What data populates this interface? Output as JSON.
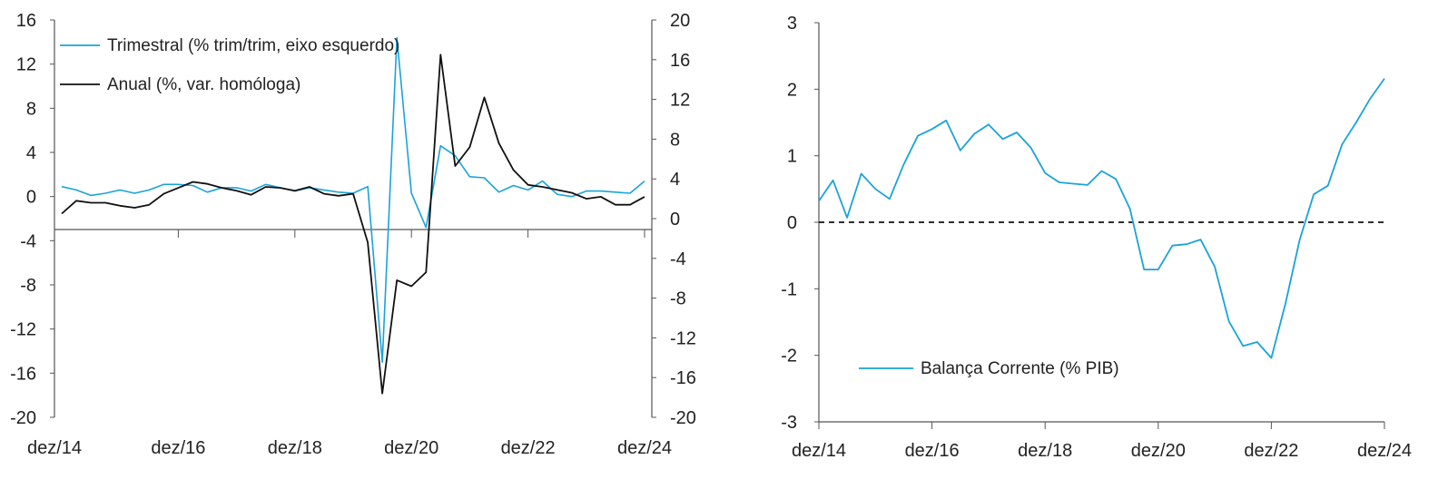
{
  "chart_data": [
    {
      "type": "line",
      "x": [
        "2014Q4",
        "2015Q1",
        "2015Q2",
        "2015Q3",
        "2015Q4",
        "2016Q1",
        "2016Q2",
        "2016Q3",
        "2016Q4",
        "2017Q1",
        "2017Q2",
        "2017Q3",
        "2017Q4",
        "2018Q1",
        "2018Q2",
        "2018Q3",
        "2018Q4",
        "2019Q1",
        "2019Q2",
        "2019Q3",
        "2019Q4",
        "2020Q1",
        "2020Q2",
        "2020Q3",
        "2020Q4",
        "2021Q1",
        "2021Q2",
        "2021Q3",
        "2021Q4",
        "2022Q1",
        "2022Q2",
        "2022Q3",
        "2022Q4",
        "2023Q1",
        "2023Q2",
        "2023Q3",
        "2023Q4",
        "2024Q1",
        "2024Q2",
        "2024Q3",
        "2024Q4"
      ],
      "x_tick_labels": [
        "dez/14",
        "dez/16",
        "dez/18",
        "dez/20",
        "dez/22",
        "dez/24"
      ],
      "y_left_ticks": [
        "16",
        "12",
        "8",
        "4",
        "0",
        "-4",
        "-8",
        "-12",
        "-16",
        "-20"
      ],
      "y_right_ticks": [
        "20",
        "16",
        "12",
        "8",
        "4",
        "0",
        "-4",
        "-8",
        "-12",
        "-16",
        "-20"
      ],
      "ylim_left": [
        -20,
        16
      ],
      "ylim_right": [
        -20,
        20
      ],
      "legend_position": "top-left",
      "grid": false,
      "series": [
        {
          "name": "Trimestral (% trim/trim, eixo esquerdo)",
          "axis": "left",
          "color": "#1aa3d9",
          "values": [
            0.9,
            0.6,
            0.1,
            0.3,
            0.6,
            0.3,
            0.6,
            1.1,
            1.1,
            1.0,
            0.4,
            0.8,
            0.8,
            0.5,
            1.1,
            0.8,
            0.5,
            0.8,
            0.6,
            0.4,
            0.3,
            0.9,
            -15.0,
            14.4,
            0.3,
            -2.8,
            4.6,
            3.7,
            1.8,
            1.7,
            0.4,
            1.0,
            0.6,
            1.4,
            0.2,
            0.0,
            0.5,
            0.5,
            0.4,
            0.3,
            1.4
          ]
        },
        {
          "name": "Anual (%, var. homóloga)",
          "axis": "right",
          "color": "#111111",
          "values": [
            0.5,
            1.8,
            1.6,
            1.6,
            1.3,
            1.1,
            1.4,
            2.5,
            3.1,
            3.7,
            3.5,
            3.1,
            2.8,
            2.4,
            3.2,
            3.1,
            2.8,
            3.2,
            2.5,
            2.3,
            2.5,
            -2.4,
            -17.6,
            -6.2,
            -6.8,
            -5.4,
            16.5,
            5.3,
            7.2,
            12.2,
            7.6,
            4.9,
            3.4,
            3.2,
            2.9,
            2.6,
            2.0,
            2.2,
            1.4,
            1.4,
            2.2
          ]
        }
      ]
    },
    {
      "type": "line",
      "x": [
        "2014Q4",
        "2015Q1",
        "2015Q2",
        "2015Q3",
        "2015Q4",
        "2016Q1",
        "2016Q2",
        "2016Q3",
        "2016Q4",
        "2017Q1",
        "2017Q2",
        "2017Q3",
        "2017Q4",
        "2018Q1",
        "2018Q2",
        "2018Q3",
        "2018Q4",
        "2019Q1",
        "2019Q2",
        "2019Q3",
        "2019Q4",
        "2020Q1",
        "2020Q2",
        "2020Q3",
        "2020Q4",
        "2021Q1",
        "2021Q2",
        "2021Q3",
        "2021Q4",
        "2022Q1",
        "2022Q2",
        "2022Q3",
        "2022Q4",
        "2023Q1",
        "2023Q2",
        "2023Q3",
        "2023Q4",
        "2024Q1",
        "2024Q2",
        "2024Q3",
        "2024Q4"
      ],
      "x_tick_labels": [
        "dez/14",
        "dez/16",
        "dez/18",
        "dez/20",
        "dez/22",
        "dez/24"
      ],
      "y_ticks": [
        "3",
        "2",
        "1",
        "0",
        "-1",
        "-2",
        "-3"
      ],
      "ylim": [
        -3,
        3
      ],
      "reference_line": 0,
      "legend_position": "bottom-left",
      "grid": false,
      "series": [
        {
          "name": "Balança Corrente (% PIB)",
          "color": "#1aa3d9",
          "values": [
            0.32,
            0.63,
            0.07,
            0.73,
            0.5,
            0.35,
            0.87,
            1.3,
            1.4,
            1.53,
            1.08,
            1.33,
            1.47,
            1.25,
            1.35,
            1.12,
            0.74,
            0.6,
            0.58,
            0.56,
            0.77,
            0.65,
            0.2,
            -0.71,
            -0.71,
            -0.35,
            -0.33,
            -0.26,
            -0.67,
            -1.49,
            -1.86,
            -1.8,
            -2.04,
            -1.22,
            -0.27,
            0.42,
            0.55,
            1.17,
            1.5,
            1.86,
            2.16
          ]
        }
      ]
    }
  ]
}
